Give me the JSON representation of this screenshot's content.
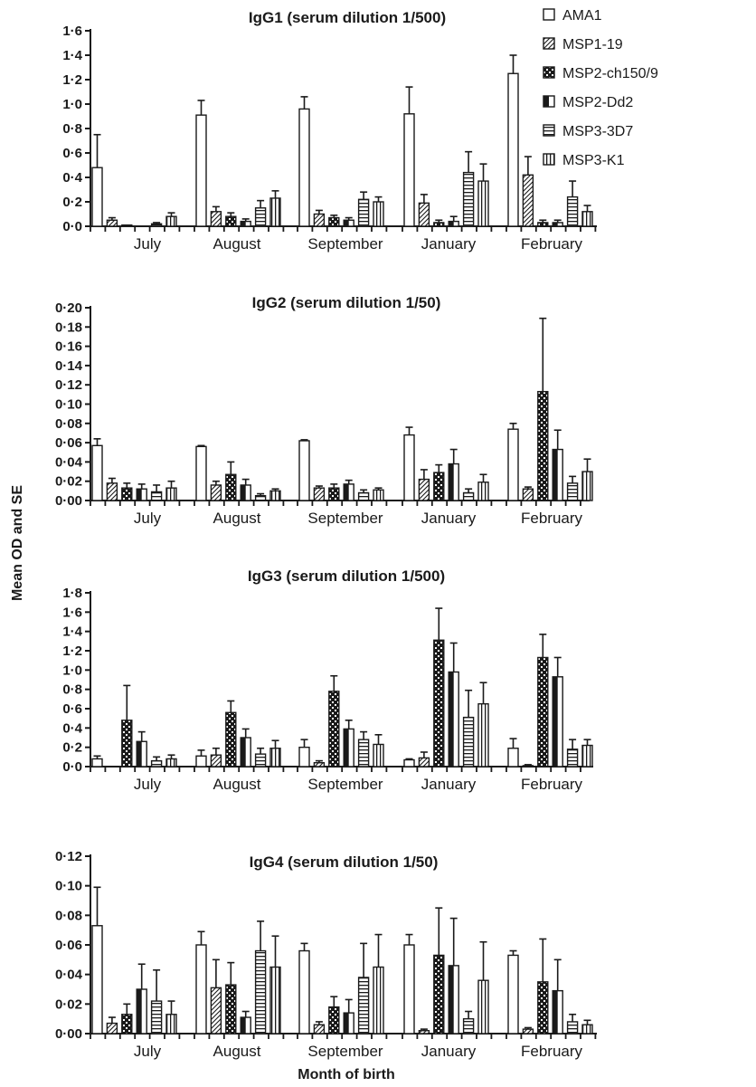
{
  "figure": {
    "ylabel": "Mean OD and SE",
    "xlabel": "Month of birth"
  },
  "legend": {
    "placement": "top-right",
    "entries": [
      {
        "name": "AMA1",
        "pattern": "open"
      },
      {
        "name": "MSP1-19",
        "pattern": "diagonal"
      },
      {
        "name": "MSP2-ch150/9",
        "pattern": "checker"
      },
      {
        "name": "MSP2-Dd2",
        "pattern": "half-black"
      },
      {
        "name": "MSP3-3D7",
        "pattern": "horizontal"
      },
      {
        "name": "MSP3-K1",
        "pattern": "vertical"
      }
    ]
  },
  "colors": {
    "ink": "#1a1a1a",
    "background": "#ffffff"
  },
  "chart_data": [
    {
      "type": "bar",
      "title": "IgG1 (serum dilution 1/500)",
      "categories": [
        "July",
        "August",
        "September",
        "January",
        "February"
      ],
      "ylim": [
        0,
        1.6
      ],
      "yticks": [
        0,
        0.2,
        0.4,
        0.6,
        0.8,
        1.0,
        1.2,
        1.4,
        1.6
      ],
      "yticklabels": [
        "0·0",
        "0·2",
        "0·4",
        "0·6",
        "0·8",
        "1·0",
        "1·2",
        "1·4",
        "1·6"
      ],
      "series": [
        {
          "name": "AMA1",
          "values": [
            0.48,
            0.91,
            0.96,
            0.92,
            1.25
          ],
          "errors": [
            0.27,
            0.12,
            0.1,
            0.22,
            0.15
          ]
        },
        {
          "name": "MSP1-19",
          "values": [
            0.05,
            0.12,
            0.1,
            0.19,
            0.42
          ],
          "errors": [
            0.02,
            0.04,
            0.03,
            0.07,
            0.15
          ]
        },
        {
          "name": "MSP2-ch150/9",
          "values": [
            0.01,
            0.08,
            0.07,
            0.03,
            0.03
          ],
          "errors": [
            0.0,
            0.03,
            0.02,
            0.02,
            0.02
          ]
        },
        {
          "name": "MSP2-Dd2",
          "values": [
            0.0,
            0.04,
            0.05,
            0.04,
            0.03
          ],
          "errors": [
            0.0,
            0.02,
            0.02,
            0.04,
            0.02
          ]
        },
        {
          "name": "MSP3-3D7",
          "values": [
            0.02,
            0.15,
            0.22,
            0.44,
            0.24
          ],
          "errors": [
            0.01,
            0.06,
            0.06,
            0.17,
            0.13
          ]
        },
        {
          "name": "MSP3-K1",
          "values": [
            0.08,
            0.23,
            0.2,
            0.37,
            0.12
          ],
          "errors": [
            0.03,
            0.06,
            0.04,
            0.14,
            0.05
          ]
        }
      ]
    },
    {
      "type": "bar",
      "title": "IgG2 (serum dilution 1/50)",
      "categories": [
        "July",
        "August",
        "September",
        "January",
        "February"
      ],
      "ylim": [
        0,
        0.2
      ],
      "yticks": [
        0,
        0.02,
        0.04,
        0.06,
        0.08,
        0.1,
        0.12,
        0.14,
        0.16,
        0.18,
        0.2
      ],
      "yticklabels": [
        "0·00",
        "0·02",
        "0·04",
        "0·06",
        "0·08",
        "0·10",
        "0·12",
        "0·14",
        "0·16",
        "0·18",
        "0·20"
      ],
      "series": [
        {
          "name": "AMA1",
          "values": [
            0.057,
            0.056,
            0.062,
            0.068,
            0.074
          ],
          "errors": [
            0.007,
            0.001,
            0.001,
            0.008,
            0.006
          ]
        },
        {
          "name": "MSP1-19",
          "values": [
            0.018,
            0.016,
            0.013,
            0.022,
            0.012
          ],
          "errors": [
            0.005,
            0.004,
            0.002,
            0.01,
            0.002
          ]
        },
        {
          "name": "MSP2-ch150/9",
          "values": [
            0.013,
            0.027,
            0.013,
            0.029,
            0.113
          ],
          "errors": [
            0.005,
            0.013,
            0.004,
            0.008,
            0.076
          ]
        },
        {
          "name": "MSP2-Dd2",
          "values": [
            0.012,
            0.016,
            0.017,
            0.038,
            0.053
          ],
          "errors": [
            0.005,
            0.006,
            0.004,
            0.015,
            0.02
          ]
        },
        {
          "name": "MSP3-3D7",
          "values": [
            0.009,
            0.005,
            0.008,
            0.008,
            0.018
          ],
          "errors": [
            0.007,
            0.002,
            0.003,
            0.004,
            0.007
          ]
        },
        {
          "name": "MSP3-K1",
          "values": [
            0.013,
            0.01,
            0.011,
            0.019,
            0.03
          ],
          "errors": [
            0.007,
            0.002,
            0.002,
            0.008,
            0.013
          ]
        }
      ]
    },
    {
      "type": "bar",
      "title": "IgG3 (serum dilution 1/500)",
      "categories": [
        "July",
        "August",
        "September",
        "January",
        "February"
      ],
      "ylim": [
        0,
        1.8
      ],
      "yticks": [
        0,
        0.2,
        0.4,
        0.6,
        0.8,
        1.0,
        1.2,
        1.4,
        1.6,
        1.8
      ],
      "yticklabels": [
        "0·0",
        "0·2",
        "0·4",
        "0·6",
        "0·8",
        "1·0",
        "1·2",
        "1·4",
        "1·6",
        "1·8"
      ],
      "series": [
        {
          "name": "AMA1",
          "values": [
            0.08,
            0.11,
            0.2,
            0.07,
            0.19
          ],
          "errors": [
            0.03,
            0.06,
            0.08,
            0.01,
            0.1
          ]
        },
        {
          "name": "MSP1-19",
          "values": [
            0.0,
            0.12,
            0.04,
            0.09,
            0.01
          ],
          "errors": [
            0.0,
            0.07,
            0.02,
            0.06,
            0.01
          ]
        },
        {
          "name": "MSP2-ch150/9",
          "values": [
            0.48,
            0.56,
            0.78,
            1.31,
            1.13
          ],
          "errors": [
            0.36,
            0.12,
            0.16,
            0.33,
            0.24
          ]
        },
        {
          "name": "MSP2-Dd2",
          "values": [
            0.26,
            0.3,
            0.39,
            0.98,
            0.93
          ],
          "errors": [
            0.1,
            0.09,
            0.09,
            0.3,
            0.2
          ]
        },
        {
          "name": "MSP3-3D7",
          "values": [
            0.06,
            0.13,
            0.28,
            0.51,
            0.18
          ],
          "errors": [
            0.04,
            0.06,
            0.08,
            0.28,
            0.1
          ]
        },
        {
          "name": "MSP3-K1",
          "values": [
            0.08,
            0.19,
            0.23,
            0.65,
            0.22
          ],
          "errors": [
            0.04,
            0.08,
            0.1,
            0.22,
            0.06
          ]
        }
      ]
    },
    {
      "type": "bar",
      "title": "IgG4 (serum dilution 1/50)",
      "categories": [
        "July",
        "August",
        "September",
        "January",
        "February"
      ],
      "ylim": [
        0,
        0.12
      ],
      "yticks": [
        0,
        0.02,
        0.04,
        0.06,
        0.08,
        0.1,
        0.12
      ],
      "yticklabels": [
        "0·00",
        "0·02",
        "0·04",
        "0·06",
        "0·08",
        "0·10",
        "0·12"
      ],
      "series": [
        {
          "name": "AMA1",
          "values": [
            0.073,
            0.06,
            0.056,
            0.06,
            0.053
          ],
          "errors": [
            0.026,
            0.009,
            0.005,
            0.007,
            0.003
          ]
        },
        {
          "name": "MSP1-19",
          "values": [
            0.007,
            0.031,
            0.006,
            0.002,
            0.003
          ],
          "errors": [
            0.004,
            0.019,
            0.002,
            0.001,
            0.001
          ]
        },
        {
          "name": "MSP2-ch150/9",
          "values": [
            0.013,
            0.033,
            0.018,
            0.053,
            0.035
          ],
          "errors": [
            0.007,
            0.015,
            0.007,
            0.032,
            0.029
          ]
        },
        {
          "name": "MSP2-Dd2",
          "values": [
            0.03,
            0.011,
            0.014,
            0.046,
            0.029
          ],
          "errors": [
            0.017,
            0.004,
            0.009,
            0.032,
            0.021
          ]
        },
        {
          "name": "MSP3-3D7",
          "values": [
            0.022,
            0.056,
            0.038,
            0.01,
            0.008
          ],
          "errors": [
            0.021,
            0.02,
            0.023,
            0.005,
            0.005
          ]
        },
        {
          "name": "MSP3-K1",
          "values": [
            0.013,
            0.045,
            0.045,
            0.036,
            0.006
          ],
          "errors": [
            0.009,
            0.021,
            0.022,
            0.026,
            0.003
          ]
        }
      ]
    }
  ]
}
